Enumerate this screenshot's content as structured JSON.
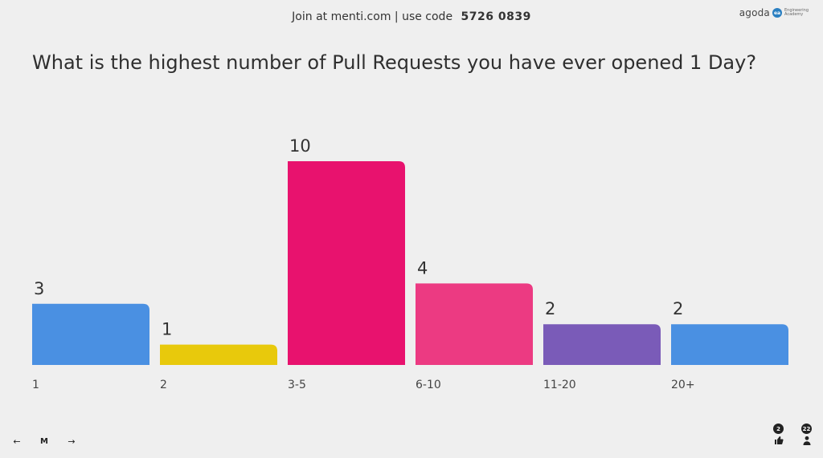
{
  "header": {
    "join_text": "Join at menti.com | use code",
    "code": "5726 0839"
  },
  "brand": {
    "name": "agoda",
    "subtitle": "Engineering Academy",
    "accent": "#2a7fc1"
  },
  "question": "What is the highest number of Pull Requests you have ever opened 1 Day?",
  "chart_data": {
    "type": "bar",
    "categories": [
      "1",
      "2",
      "3-5",
      "6-10",
      "11-20",
      "20+"
    ],
    "values": [
      3,
      1,
      10,
      4,
      2,
      2
    ],
    "colors": [
      "#4a90e2",
      "#e8c90c",
      "#e8126e",
      "#ec3a82",
      "#7a5bb8",
      "#4a90e2"
    ],
    "title": "",
    "xlabel": "",
    "ylabel": "",
    "ylim": [
      0,
      10
    ],
    "grid": false,
    "legend": "none"
  },
  "footer": {
    "nav_back": "←",
    "nav_logo": "M",
    "nav_forward": "→",
    "reactions_count": "2",
    "participants_count": "22"
  }
}
